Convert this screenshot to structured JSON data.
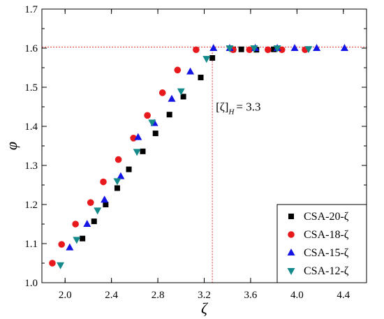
{
  "chart_data": {
    "type": "scatter",
    "xlabel": "ζ",
    "ylabel": "φ",
    "xlim": [
      1.8,
      4.6
    ],
    "ylim": [
      1.0,
      1.7
    ],
    "x_ticks": [
      "2.0",
      "2.4",
      "2.8",
      "3.2",
      "3.6",
      "4.0",
      "4.4"
    ],
    "y_ticks": [
      "1.0",
      "1.1",
      "1.2",
      "1.3",
      "1.4",
      "1.5",
      "1.6",
      "1.7"
    ],
    "grid": false,
    "legend_position": "bottom-right",
    "reference": {
      "x": 3.27,
      "y": 1.603,
      "color": "#e03030"
    },
    "annotation": {
      "bracket_text": "[ζ]",
      "subscript": "H",
      "value_text": "= 3.3",
      "x": 3.3,
      "y": 1.44
    },
    "series": [
      {
        "name": "CSA-20-ζ",
        "marker": "square",
        "color": "#000000",
        "x": [
          2.15,
          2.25,
          2.35,
          2.45,
          2.55,
          2.67,
          2.78,
          2.9,
          3.02,
          3.17,
          3.27,
          3.45,
          3.52,
          3.65,
          3.8
        ],
        "y": [
          1.113,
          1.157,
          1.2,
          1.242,
          1.29,
          1.336,
          1.382,
          1.43,
          1.476,
          1.525,
          1.575,
          1.597,
          1.597,
          1.596,
          1.597
        ]
      },
      {
        "name": "CSA-18-ζ",
        "marker": "circle",
        "color": "#e8191c",
        "x": [
          1.89,
          1.97,
          2.09,
          2.22,
          2.33,
          2.46,
          2.59,
          2.71,
          2.84,
          2.97,
          3.13,
          3.45,
          3.59,
          3.75,
          3.87,
          4.07
        ],
        "y": [
          1.05,
          1.098,
          1.15,
          1.205,
          1.258,
          1.315,
          1.37,
          1.428,
          1.486,
          1.544,
          1.596,
          1.596,
          1.596,
          1.596,
          1.596,
          1.596
        ]
      },
      {
        "name": "CSA-15-ζ",
        "marker": "triangle-up",
        "color": "#1414e6",
        "x": [
          2.04,
          2.19,
          2.34,
          2.48,
          2.63,
          2.77,
          2.92,
          3.08,
          3.28,
          3.42,
          3.64,
          3.83,
          3.98,
          4.17,
          4.41
        ],
        "y": [
          1.09,
          1.15,
          1.212,
          1.272,
          1.372,
          1.408,
          1.47,
          1.54,
          1.6,
          1.6,
          1.6,
          1.6,
          1.6,
          1.6,
          1.6
        ]
      },
      {
        "name": "CSA-12-ζ",
        "marker": "triangle-down",
        "color": "#158a8a",
        "x": [
          1.96,
          2.1,
          2.28,
          2.45,
          2.62,
          2.75,
          3.0,
          3.22,
          3.42,
          3.63,
          3.83,
          4.1
        ],
        "y": [
          1.045,
          1.11,
          1.185,
          1.26,
          1.335,
          1.41,
          1.49,
          1.573,
          1.6,
          1.6,
          1.6,
          1.598
        ]
      }
    ]
  }
}
